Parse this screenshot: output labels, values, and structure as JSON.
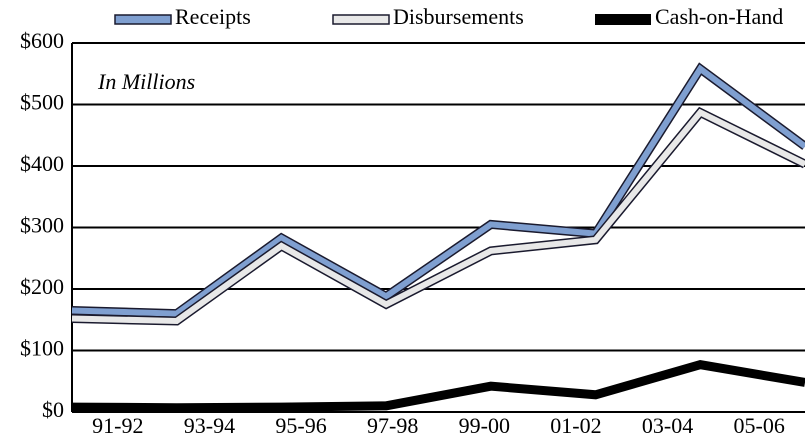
{
  "chart_data": {
    "type": "line",
    "annotation": "In Millions",
    "categories": [
      "91-92",
      "93-94",
      "95-96",
      "97-98",
      "99-00",
      "01-02",
      "03-04",
      "05-06"
    ],
    "series": [
      {
        "name": "Receipts",
        "color": "#7f9fd0",
        "values": [
          165,
          160,
          283,
          188,
          305,
          290,
          558,
          432
        ]
      },
      {
        "name": "Disbursements",
        "color": "#e8e8e8",
        "values": [
          152,
          148,
          270,
          175,
          262,
          280,
          487,
          403
        ]
      },
      {
        "name": "Cash-on-Hand",
        "color": "#000000",
        "values": [
          8,
          7,
          8,
          10,
          42,
          28,
          77,
          48
        ]
      }
    ],
    "ylim": [
      0,
      600
    ],
    "yticks": [
      {
        "value": 0,
        "label": "$0"
      },
      {
        "value": 100,
        "label": "$100"
      },
      {
        "value": 200,
        "label": "$200"
      },
      {
        "value": 300,
        "label": "$300"
      },
      {
        "value": 400,
        "label": "$400"
      },
      {
        "value": 500,
        "label": "$500"
      },
      {
        "value": 600,
        "label": "$600"
      }
    ],
    "grid": true
  }
}
